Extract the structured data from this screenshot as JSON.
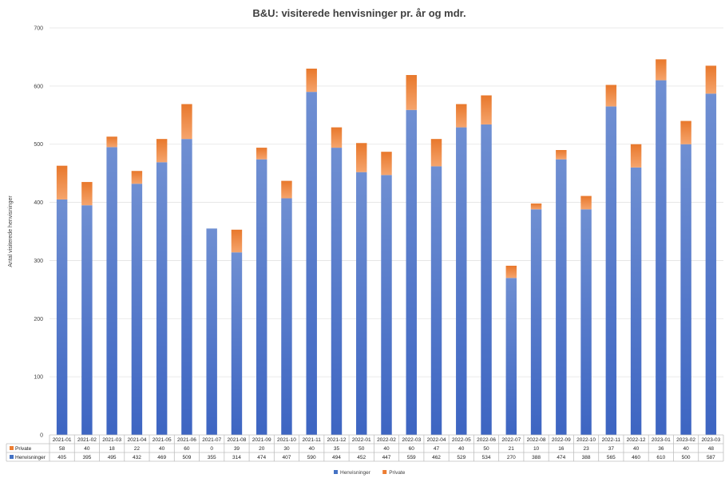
{
  "chart_data": {
    "type": "bar",
    "stacked": true,
    "title": "B&U: visiterede henvisninger pr. år og mdr.",
    "xlabel": "",
    "ylabel": "Antal visiterede henvisninger",
    "ylim": [
      0,
      700
    ],
    "yticks": [
      0,
      100,
      200,
      300,
      400,
      500,
      600,
      700
    ],
    "grid": true,
    "legend_position": "bottom",
    "categories": [
      "2021-01",
      "2021-02",
      "2021-03",
      "2021-04",
      "2021-05",
      "2021-06",
      "2021-07",
      "2021-08",
      "2021-09",
      "2021-10",
      "2021-11",
      "2021-12",
      "2022-01",
      "2022-02",
      "2022-03",
      "2022-04",
      "2022-05",
      "2022-06",
      "2022-07",
      "2022-08",
      "2022-09",
      "2022-10",
      "2022-11",
      "2022-12",
      "2023-01",
      "2023-02",
      "2023-03"
    ],
    "series": [
      {
        "name": "Henvisninger",
        "color": "#4472c4",
        "values": [
          405,
          395,
          495,
          432,
          469,
          509,
          355,
          314,
          474,
          407,
          590,
          494,
          452,
          447,
          559,
          462,
          529,
          534,
          270,
          388,
          474,
          388,
          565,
          460,
          610,
          500,
          587
        ]
      },
      {
        "name": "Private",
        "color": "#ed7d31",
        "values": [
          58,
          40,
          18,
          22,
          40,
          60,
          0,
          39,
          20,
          30,
          40,
          35,
          50,
          40,
          60,
          47,
          40,
          50,
          21,
          10,
          16,
          23,
          37,
          40,
          36,
          40,
          48
        ]
      }
    ],
    "data_table": true
  }
}
